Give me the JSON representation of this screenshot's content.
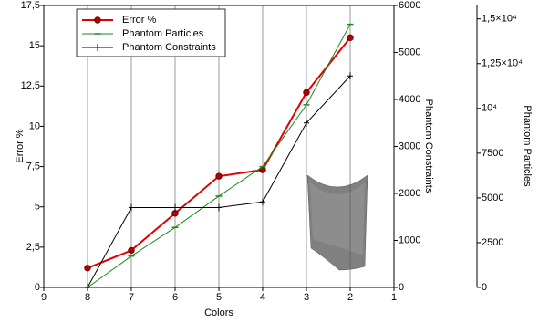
{
  "chart_data": {
    "type": "line",
    "x_label": "Colors",
    "y_label": "Error %",
    "y2_label": "Phantom Constraints",
    "y3_label": "Phantom Particles",
    "x": [
      8,
      7,
      6,
      5,
      4,
      3,
      2
    ],
    "xlim": [
      9,
      1
    ],
    "xticks": [
      9,
      8,
      7,
      6,
      5,
      4,
      3,
      2,
      1
    ],
    "ylim": [
      0,
      17.5
    ],
    "yticks": [
      0,
      {
        "value": 2.5,
        "label": "2,5"
      },
      5,
      {
        "value": 7.5,
        "label": "7,5"
      },
      10,
      {
        "value": 12.5,
        "label": "12,5"
      },
      15,
      {
        "value": 17.5,
        "label": "17,5"
      }
    ],
    "y2lim": [
      0,
      6000
    ],
    "y2ticks": [
      0,
      1000,
      2000,
      3000,
      4000,
      5000,
      6000
    ],
    "y3lim": [
      0,
      15750
    ],
    "y3ticks": [
      0,
      2500,
      5000,
      7500,
      {
        "value": 10000,
        "label": "10⁴"
      },
      {
        "value": 12500,
        "label": "1,25×10⁴"
      },
      {
        "value": 15000,
        "label": "1,5×10⁴"
      }
    ],
    "grid": true,
    "series": [
      {
        "name": "Error %",
        "color": "#e00000",
        "marker": "circle",
        "values": [
          1.2,
          2.3,
          4.6,
          6.9,
          7.3,
          12.1,
          15.5
        ]
      },
      {
        "name": "Phantom Particles",
        "color": "#1a8a1a",
        "marker": "dash",
        "axis": "y3",
        "values": [
          0,
          1750,
          3350,
          5100,
          6750,
          10200,
          14700
        ]
      },
      {
        "name": "Phantom Constraints",
        "color": "#000000",
        "marker": "plus",
        "axis": "y2",
        "values": [
          0,
          1700,
          1700,
          1700,
          1820,
          3500,
          4500
        ]
      }
    ]
  }
}
